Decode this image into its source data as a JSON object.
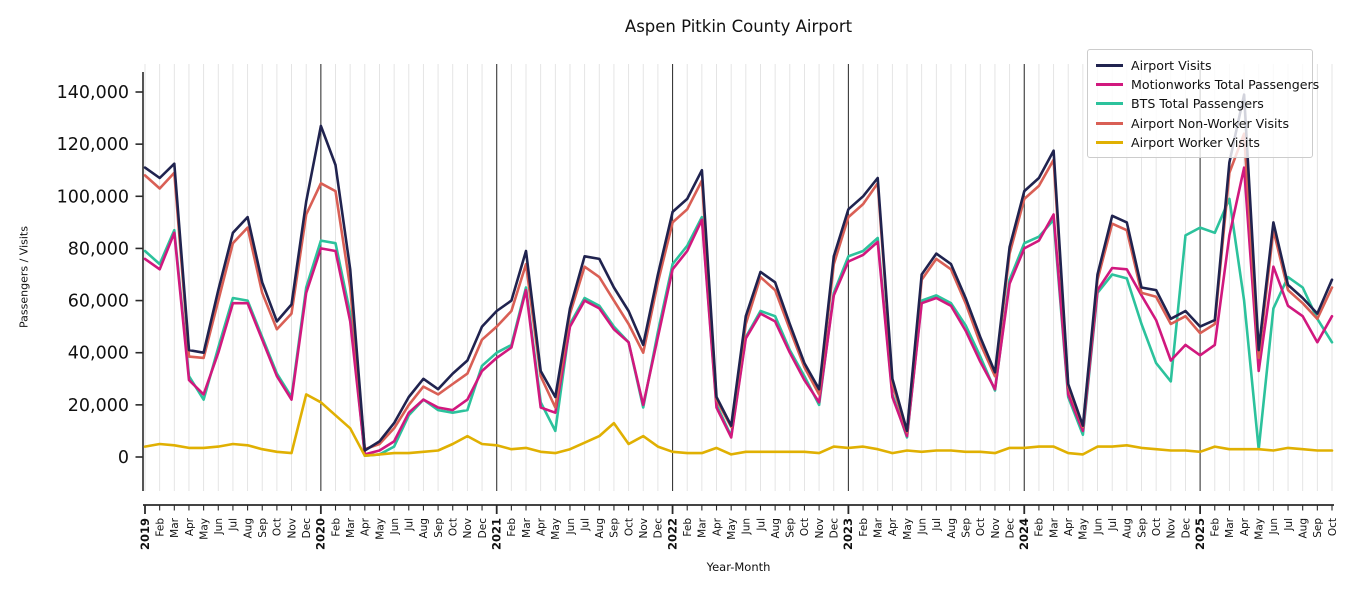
{
  "title": "Aspen Pitkin County Airport",
  "x_axis_label": "Year-Month",
  "y_axis_label": "Passengers / Visits",
  "chart_data": {
    "type": "line",
    "title": "Aspen Pitkin County Airport",
    "xlabel": "Year-Month",
    "ylabel": "Passengers / Visits",
    "ylim": [
      0,
      140000
    ],
    "y_ticks": [
      "0",
      "20,000",
      "40,000",
      "60,000",
      "80,000",
      "100,000",
      "120,000",
      "140,000"
    ],
    "y_tick_values": [
      0,
      20000,
      40000,
      60000,
      80000,
      100000,
      120000,
      140000
    ],
    "grid": "vertical gridline at every month",
    "legend_position": "upper right",
    "x": [
      "2019",
      "Feb",
      "Mar",
      "Apr",
      "May",
      "Jun",
      "Jul",
      "Aug",
      "Sep",
      "Oct",
      "Nov",
      "Dec",
      "2020",
      "Feb",
      "Mar",
      "Apr",
      "May",
      "Jun",
      "Jul",
      "Aug",
      "Sep",
      "Oct",
      "Nov",
      "Dec",
      "2021",
      "Feb",
      "Mar",
      "Apr",
      "May",
      "Jun",
      "Jul",
      "Aug",
      "Sep",
      "Oct",
      "Nov",
      "Dec",
      "2022",
      "Feb",
      "Mar",
      "Apr",
      "May",
      "Jun",
      "Jul",
      "Aug",
      "Sep",
      "Oct",
      "Nov",
      "Dec",
      "2023",
      "Feb",
      "Mar",
      "Apr",
      "May",
      "Jun",
      "Jul",
      "Aug",
      "Sep",
      "Oct",
      "Nov",
      "Dec",
      "2024",
      "Feb",
      "Mar",
      "Apr",
      "May",
      "Jun",
      "Jul",
      "Aug",
      "Sep",
      "Oct",
      "Nov",
      "Dec",
      "2025",
      "Feb",
      "Mar",
      "Apr",
      "May",
      "Jun",
      "Jul",
      "Aug",
      "Sep",
      "Oct"
    ],
    "year_line_indices": [
      12,
      24,
      36,
      48,
      60,
      72
    ],
    "series": [
      {
        "name": "Airport Visits",
        "color": "#20234f",
        "values": [
          111000,
          107000,
          112500,
          41000,
          40000,
          64000,
          86000,
          92000,
          67000,
          52000,
          58500,
          98000,
          127000,
          112000,
          72000,
          2500,
          6000,
          13000,
          23000,
          30000,
          26000,
          32000,
          37000,
          50000,
          56000,
          60000,
          79000,
          33000,
          23000,
          57000,
          77000,
          76000,
          65000,
          56000,
          43000,
          70000,
          94000,
          99000,
          110000,
          23000,
          12000,
          54000,
          71000,
          67000,
          51000,
          36000,
          26000,
          77000,
          95000,
          100000,
          107000,
          30000,
          10000,
          70000,
          78000,
          74000,
          61000,
          46000,
          32500,
          80500,
          102000,
          107000,
          117500,
          28000,
          12000,
          70000,
          92500,
          90000,
          65000,
          64000,
          53000,
          56000,
          50000,
          52500,
          113000,
          139000,
          41000,
          90000,
          66000,
          61000,
          55000,
          68000
        ]
      },
      {
        "name": "Motionworks Total Passengers",
        "color": "#d1187e",
        "values": [
          76000,
          72000,
          86000,
          29500,
          24000,
          40000,
          59000,
          59000,
          45000,
          31000,
          22000,
          63000,
          80000,
          79000,
          52000,
          1000,
          2500,
          6000,
          17000,
          22000,
          19000,
          18000,
          22000,
          33000,
          38000,
          42000,
          64000,
          19000,
          17000,
          50000,
          60000,
          57000,
          49000,
          44000,
          20000,
          46000,
          72000,
          79000,
          91000,
          19000,
          7500,
          45500,
          55000,
          52000,
          40000,
          29500,
          21000,
          62000,
          75000,
          77500,
          82500,
          23000,
          8000,
          59000,
          61000,
          58000,
          48500,
          36500,
          26000,
          66500,
          80000,
          83000,
          93000,
          24000,
          10000,
          64000,
          72500,
          72000,
          62000,
          52500,
          37000,
          43000,
          39000,
          43000,
          85000,
          111000,
          33000,
          73000,
          58000,
          54000,
          44000,
          54000
        ]
      },
      {
        "name": "BTS Total Passengers",
        "color": "#2cc29c",
        "values": [
          79000,
          74000,
          87000,
          31000,
          22000,
          42000,
          61000,
          60000,
          46000,
          32000,
          23000,
          65000,
          83000,
          82000,
          55000,
          500,
          1000,
          4000,
          16000,
          22000,
          18000,
          17000,
          18000,
          35000,
          40000,
          43000,
          65000,
          21000,
          10000,
          51000,
          61000,
          58000,
          50000,
          44000,
          19000,
          48000,
          74000,
          81000,
          92000,
          20000,
          8000,
          46000,
          56000,
          54000,
          41000,
          31000,
          20000,
          63000,
          77000,
          79000,
          84000,
          24000,
          7500,
          60000,
          62000,
          59000,
          50500,
          38500,
          25500,
          68000,
          82000,
          84500,
          91000,
          23000,
          8500,
          63000,
          70000,
          68500,
          51000,
          36000,
          29000,
          85000,
          88000,
          86000,
          99000,
          60000,
          3000,
          57000,
          69000,
          65000,
          53000,
          44000
        ]
      },
      {
        "name": "Airport Non-Worker Visits",
        "color": "#d95f55",
        "values": [
          108000,
          103000,
          109000,
          38500,
          38000,
          60000,
          82000,
          88000,
          63000,
          49000,
          55000,
          93000,
          105000,
          102000,
          65000,
          3000,
          5000,
          11000,
          20000,
          27000,
          24000,
          28000,
          32000,
          45000,
          50000,
          56000,
          74000,
          31000,
          19000,
          55000,
          73000,
          69000,
          60000,
          51000,
          40000,
          67000,
          90000,
          95000,
          106000,
          22000,
          11500,
          51000,
          69000,
          64000,
          49000,
          34500,
          24000,
          74000,
          92000,
          97000,
          105000,
          28000,
          9500,
          68000,
          76000,
          72000,
          59000,
          43500,
          31000,
          78000,
          99000,
          104000,
          114000,
          27000,
          11500,
          68000,
          89500,
          87000,
          63000,
          61500,
          51000,
          54000,
          47500,
          51000,
          109000,
          124000,
          38000,
          87000,
          64000,
          59000,
          53000,
          65000
        ]
      },
      {
        "name": "Airport Worker Visits",
        "color": "#e0b002",
        "values": [
          4000,
          5000,
          4500,
          3500,
          3500,
          4000,
          5000,
          4500,
          3000,
          2000,
          1500,
          24000,
          21000,
          16000,
          11000,
          500,
          1000,
          1500,
          1500,
          2000,
          2500,
          5000,
          8000,
          5000,
          4500,
          3000,
          3500,
          2000,
          1500,
          3000,
          5500,
          8000,
          13000,
          5000,
          8000,
          4000,
          2000,
          1500,
          1500,
          3500,
          1000,
          2000,
          2000,
          2000,
          2000,
          2000,
          1500,
          4000,
          3500,
          4000,
          3000,
          1500,
          2500,
          2000,
          2500,
          2500,
          2000,
          2000,
          1500,
          3500,
          3500,
          4000,
          4000,
          1500,
          1000,
          4000,
          4000,
          4500,
          3500,
          3000,
          2500,
          2500,
          2000,
          4000,
          3000,
          3000,
          3000,
          2500,
          3500,
          3000,
          2500,
          2500
        ]
      }
    ]
  }
}
